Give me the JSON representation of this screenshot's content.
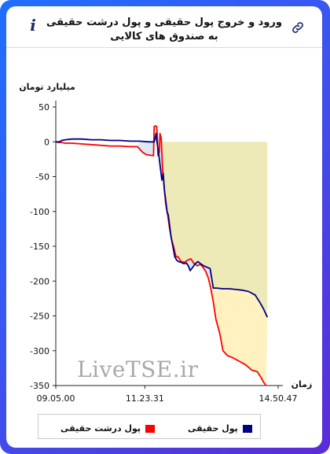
{
  "header": {
    "title": "ورود و خروج پول حقیقی و پول درشت حقیقی به صندوق های کالایی",
    "info_icon": "i",
    "link_icon": "link-icon"
  },
  "watermark": "LiveTSE.ir",
  "colors": {
    "real_money": "#000080",
    "big_real_money": "#ff0000",
    "fill_between": "#dde8f4",
    "fill_under": "#eeeab8",
    "fill_between_lower": "#fff2c0"
  },
  "chart_data": {
    "type": "line",
    "ylabel": "میلیارد تومان",
    "xlabel": "زمان",
    "ylim": [
      -350,
      50
    ],
    "yticks": [
      50,
      0,
      -50,
      -100,
      -150,
      -200,
      -250,
      -300,
      -350
    ],
    "xticks": [
      "09.05.00",
      "11.23.31",
      "14.50.47"
    ],
    "x_range_minutes": [
      545,
      890.78
    ],
    "series": [
      {
        "name": "پول حقیقی",
        "color": "#000080",
        "points": [
          [
            545,
            0
          ],
          [
            551,
            0
          ],
          [
            554,
            2
          ],
          [
            560,
            3
          ],
          [
            570,
            4
          ],
          [
            585,
            4
          ],
          [
            600,
            3
          ],
          [
            615,
            3
          ],
          [
            630,
            2
          ],
          [
            645,
            2
          ],
          [
            660,
            1
          ],
          [
            675,
            1
          ],
          [
            690,
            0
          ],
          [
            698,
            0
          ],
          [
            701,
            12
          ],
          [
            702,
            2
          ],
          [
            704,
            -10
          ],
          [
            706,
            -25
          ],
          [
            708,
            -40
          ],
          [
            710,
            -55
          ],
          [
            712,
            -45
          ],
          [
            714,
            -70
          ],
          [
            716,
            -85
          ],
          [
            718,
            -100
          ],
          [
            720,
            -105
          ],
          [
            722,
            -120
          ],
          [
            724,
            -135
          ],
          [
            726,
            -145
          ],
          [
            728,
            -155
          ],
          [
            730,
            -165
          ],
          [
            733,
            -170
          ],
          [
            736,
            -172
          ],
          [
            740,
            -173
          ],
          [
            744,
            -175
          ],
          [
            748,
            -174
          ],
          [
            751,
            -178
          ],
          [
            754,
            -185
          ],
          [
            758,
            -180
          ],
          [
            762,
            -175
          ],
          [
            766,
            -172
          ],
          [
            770,
            -175
          ],
          [
            775,
            -178
          ],
          [
            780,
            -180
          ],
          [
            785,
            -182
          ],
          [
            790,
            -210
          ],
          [
            795,
            -210
          ],
          [
            805,
            -211
          ],
          [
            815,
            -211
          ],
          [
            825,
            -212
          ],
          [
            835,
            -213
          ],
          [
            845,
            -215
          ],
          [
            855,
            -220
          ],
          [
            862,
            -230
          ],
          [
            868,
            -240
          ],
          [
            874,
            -252
          ]
        ]
      },
      {
        "name": "پول درشت حقیقی",
        "color": "#ff0000",
        "points": [
          [
            545,
            0
          ],
          [
            550,
            -1
          ],
          [
            555,
            -1
          ],
          [
            560,
            -2
          ],
          [
            570,
            -2
          ],
          [
            585,
            -3
          ],
          [
            600,
            -4
          ],
          [
            615,
            -5
          ],
          [
            630,
            -6
          ],
          [
            645,
            -6
          ],
          [
            660,
            -7
          ],
          [
            672,
            -7
          ],
          [
            675,
            -10
          ],
          [
            680,
            -15
          ],
          [
            685,
            -18
          ],
          [
            690,
            -19
          ],
          [
            697,
            -20
          ],
          [
            698,
            22
          ],
          [
            700,
            23
          ],
          [
            702,
            22
          ],
          [
            703,
            5
          ],
          [
            704,
            -20
          ],
          [
            706,
            -15
          ],
          [
            707,
            12
          ],
          [
            709,
            5
          ],
          [
            711,
            -40
          ],
          [
            713,
            -60
          ],
          [
            716,
            -90
          ],
          [
            719,
            -105
          ],
          [
            722,
            -125
          ],
          [
            725,
            -140
          ],
          [
            728,
            -150
          ],
          [
            732,
            -165
          ],
          [
            735,
            -165
          ],
          [
            740,
            -172
          ],
          [
            745,
            -173
          ],
          [
            750,
            -170
          ],
          [
            755,
            -168
          ],
          [
            760,
            -175
          ],
          [
            765,
            -178
          ],
          [
            770,
            -176
          ],
          [
            774,
            -180
          ],
          [
            778,
            -186
          ],
          [
            782,
            -195
          ],
          [
            786,
            -210
          ],
          [
            790,
            -230
          ],
          [
            794,
            -255
          ],
          [
            800,
            -275
          ],
          [
            805,
            -300
          ],
          [
            812,
            -307
          ],
          [
            820,
            -310
          ],
          [
            830,
            -315
          ],
          [
            840,
            -320
          ],
          [
            850,
            -328
          ],
          [
            858,
            -330
          ],
          [
            864,
            -338
          ],
          [
            868,
            -345
          ],
          [
            872,
            -350
          ]
        ]
      }
    ],
    "legend": {
      "position": "bottom"
    }
  },
  "legend": {
    "item1": "پول حقیقی",
    "item2": "پول درشت حقیقی"
  }
}
